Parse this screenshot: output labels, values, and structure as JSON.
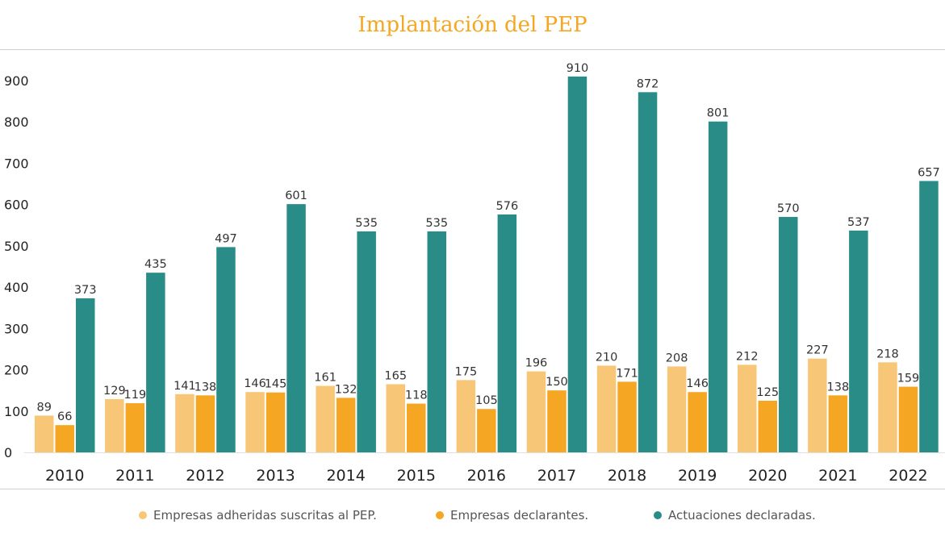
{
  "colors": {
    "series1": "#f8c677",
    "series2": "#f5a623",
    "series3": "#2a8c87",
    "title": "#f5a623"
  },
  "chart_data": {
    "type": "bar",
    "title": "Implantación del PEP",
    "categories": [
      "2010",
      "2011",
      "2012",
      "2013",
      "2014",
      "2015",
      "2016",
      "2017",
      "2018",
      "2019",
      "2020",
      "2021",
      "2022"
    ],
    "series": [
      {
        "name": "Empresas adheridas suscritas al PEP.",
        "values": [
          89,
          129,
          141,
          146,
          161,
          165,
          175,
          196,
          210,
          208,
          212,
          227,
          218
        ]
      },
      {
        "name": "Empresas declarantes.",
        "values": [
          66,
          119,
          138,
          145,
          132,
          118,
          105,
          150,
          171,
          146,
          125,
          138,
          159
        ]
      },
      {
        "name": "Actuaciones declaradas.",
        "values": [
          373,
          435,
          497,
          601,
          535,
          535,
          576,
          910,
          872,
          801,
          570,
          537,
          657
        ]
      }
    ],
    "yticks": [
      0,
      100,
      200,
      300,
      400,
      500,
      600,
      700,
      800,
      900
    ],
    "ylim": [
      0,
      910
    ],
    "legend_position": "bottom",
    "grid": false
  }
}
